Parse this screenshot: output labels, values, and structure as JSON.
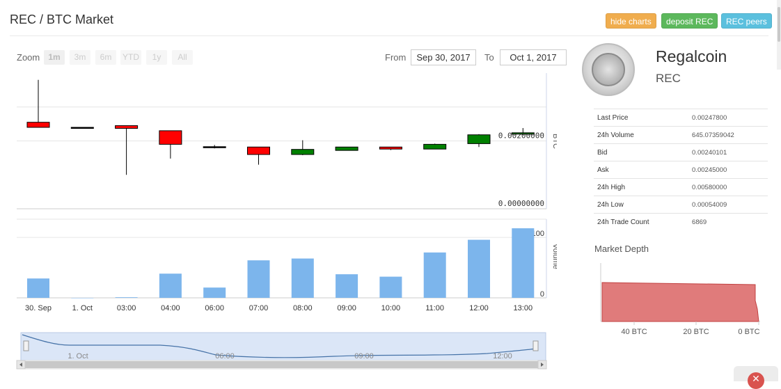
{
  "header": {
    "title": "REC / BTC Market",
    "buttons": {
      "hide_charts": "hide charts",
      "deposit": "deposit REC",
      "peers": "REC peers"
    },
    "button_colors": {
      "hide_charts": "#f0ad4e",
      "deposit": "#5cb85c",
      "peers": "#5bc0de"
    }
  },
  "range_selector": {
    "zoom_label": "Zoom",
    "zoom_buttons": [
      "1m",
      "3m",
      "6m",
      "YTD",
      "1y",
      "All"
    ],
    "from_label": "From",
    "from_value": "Sep 30, 2017",
    "to_label": "To",
    "to_value": "Oct 1, 2017"
  },
  "coin": {
    "name": "Regalcoin",
    "symbol": "REC",
    "logo_icon": "regalcoin-logo-icon"
  },
  "stats": [
    {
      "label": "Last Price",
      "value": "0.00247800"
    },
    {
      "label": "24h Volume",
      "value": "645.07359042"
    },
    {
      "label": "Bid",
      "value": "0.00240101"
    },
    {
      "label": "Ask",
      "value": "0.00245000"
    },
    {
      "label": "24h High",
      "value": "0.00580000"
    },
    {
      "label": "24h Low",
      "value": "0.00054009"
    },
    {
      "label": "24h Trade Count",
      "value": "6869"
    }
  ],
  "market_depth": {
    "title": "Market Depth",
    "x_ticks": [
      "40 BTC",
      "20 BTC",
      "0 BTC"
    ],
    "color": "#e07b7b"
  },
  "chart_data": [
    {
      "type": "candlestick",
      "ylabel": "BTC",
      "yticks": [
        "0.00000000",
        "0.00200000"
      ],
      "colors": {
        "up": "#008000",
        "down": "#ff0000"
      },
      "candles": [
        {
          "open": 0.00255,
          "high": 0.0038,
          "low": 0.0024,
          "close": 0.0024,
          "dir": "down"
        },
        {
          "open": 0.0024,
          "high": 0.0024,
          "low": 0.00239,
          "close": 0.00239,
          "dir": "flat"
        },
        {
          "open": 0.00245,
          "high": 0.00245,
          "low": 0.001,
          "close": 0.00237,
          "dir": "down"
        },
        {
          "open": 0.0023,
          "high": 0.0023,
          "low": 0.00148,
          "close": 0.0019,
          "dir": "down"
        },
        {
          "open": 0.00183,
          "high": 0.00188,
          "low": 0.00178,
          "close": 0.00182,
          "dir": "flat"
        },
        {
          "open": 0.00182,
          "high": 0.00182,
          "low": 0.0013,
          "close": 0.0016,
          "dir": "down"
        },
        {
          "open": 0.0016,
          "high": 0.00202,
          "low": 0.00158,
          "close": 0.00175,
          "dir": "up"
        },
        {
          "open": 0.00172,
          "high": 0.00182,
          "low": 0.00172,
          "close": 0.00182,
          "dir": "up"
        },
        {
          "open": 0.00182,
          "high": 0.00182,
          "low": 0.00173,
          "close": 0.00176,
          "dir": "down"
        },
        {
          "open": 0.00176,
          "high": 0.00192,
          "low": 0.00176,
          "close": 0.0019,
          "dir": "up"
        },
        {
          "open": 0.00192,
          "high": 0.0022,
          "low": 0.00182,
          "close": 0.00218,
          "dir": "up"
        },
        {
          "open": 0.0022,
          "high": 0.00238,
          "low": 0.00218,
          "close": 0.00224,
          "dir": "up"
        }
      ]
    },
    {
      "type": "bar",
      "ylabel": "Volume",
      "yticks": [
        "0",
        "100"
      ],
      "categories": [
        "30. Sep",
        "1. Oct",
        "03:00",
        "04:00",
        "06:00",
        "07:00",
        "08:00",
        "09:00",
        "10:00",
        "11:00",
        "12:00",
        "13:00"
      ],
      "values": [
        32,
        0,
        1,
        40,
        17,
        62,
        65,
        39,
        35,
        75,
        96,
        115
      ],
      "color": "#7cb5ec"
    },
    {
      "type": "area",
      "title": "navigator",
      "x_labels": [
        "1. Oct",
        "06:00",
        "09:00",
        "12:00"
      ]
    }
  ]
}
